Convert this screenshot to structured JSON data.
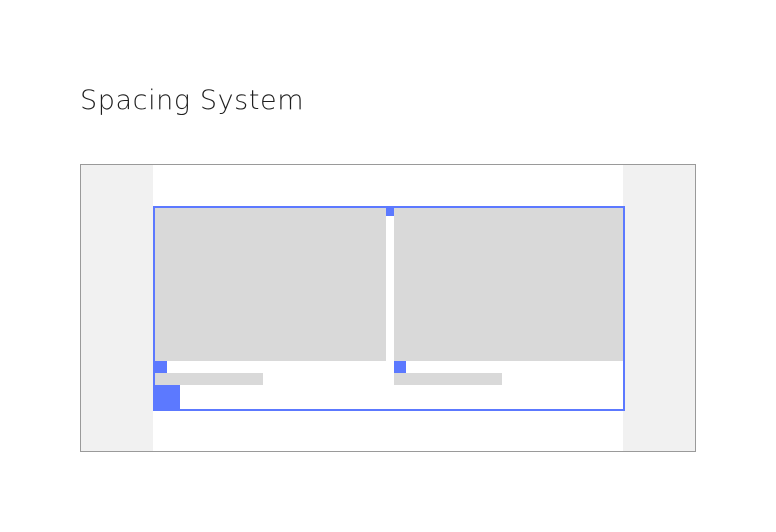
{
  "title": "Spacing System",
  "colors": {
    "accent": "#5c79ff",
    "placeholder": "#d9d9d9",
    "margin": "#f1f1f1",
    "frame_border": "#9a9a9a",
    "text": "#1f1f1f"
  }
}
